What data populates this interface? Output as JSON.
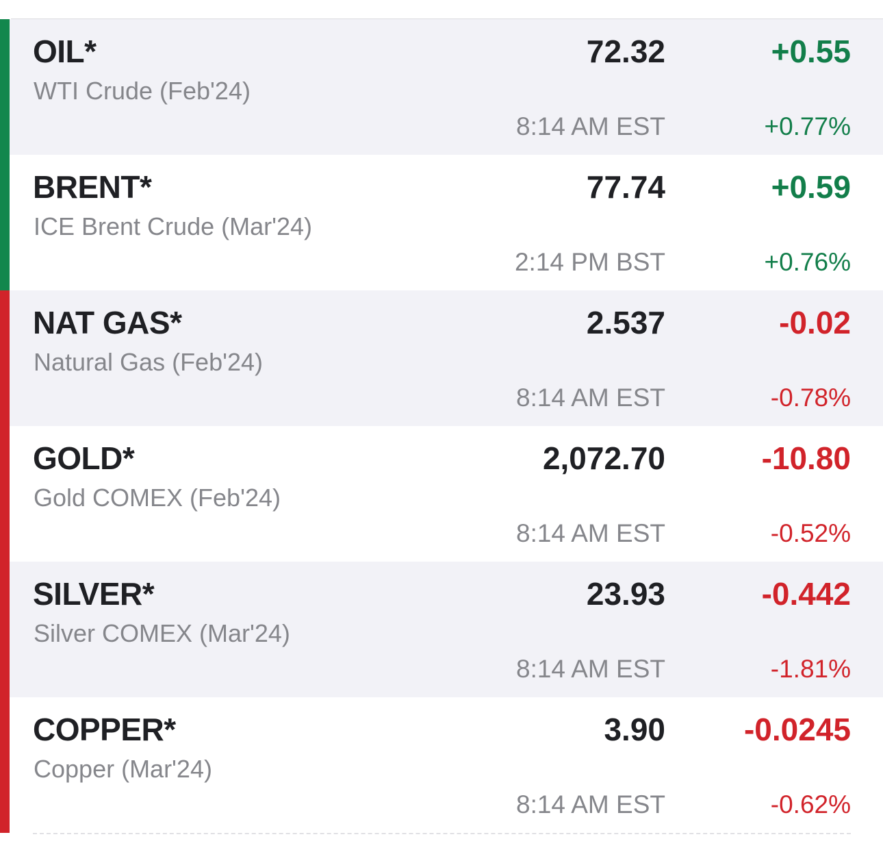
{
  "colors": {
    "up": "#127e4a",
    "down": "#d1232a",
    "bar_up": "#12874d",
    "bar_down": "#d1232a"
  },
  "quotes": [
    {
      "symbol": "OIL*",
      "name": "WTI Crude (Feb'24)",
      "price": "72.32",
      "change": "+0.55",
      "time": "8:14 AM EST",
      "pct": "+0.77%",
      "direction": "up"
    },
    {
      "symbol": "BRENT*",
      "name": "ICE Brent Crude (Mar'24)",
      "price": "77.74",
      "change": "+0.59",
      "time": "2:14 PM BST",
      "pct": "+0.76%",
      "direction": "up"
    },
    {
      "symbol": "NAT GAS*",
      "name": "Natural Gas (Feb'24)",
      "price": "2.537",
      "change": "-0.02",
      "time": "8:14 AM EST",
      "pct": "-0.78%",
      "direction": "down"
    },
    {
      "symbol": "GOLD*",
      "name": "Gold COMEX (Feb'24)",
      "price": "2,072.70",
      "change": "-10.80",
      "time": "8:14 AM EST",
      "pct": "-0.52%",
      "direction": "down"
    },
    {
      "symbol": "SILVER*",
      "name": "Silver COMEX (Mar'24)",
      "price": "23.93",
      "change": "-0.442",
      "time": "8:14 AM EST",
      "pct": "-1.81%",
      "direction": "down"
    },
    {
      "symbol": "COPPER*",
      "name": "Copper (Mar'24)",
      "price": "3.90",
      "change": "-0.0245",
      "time": "8:14 AM EST",
      "pct": "-0.62%",
      "direction": "down"
    }
  ]
}
